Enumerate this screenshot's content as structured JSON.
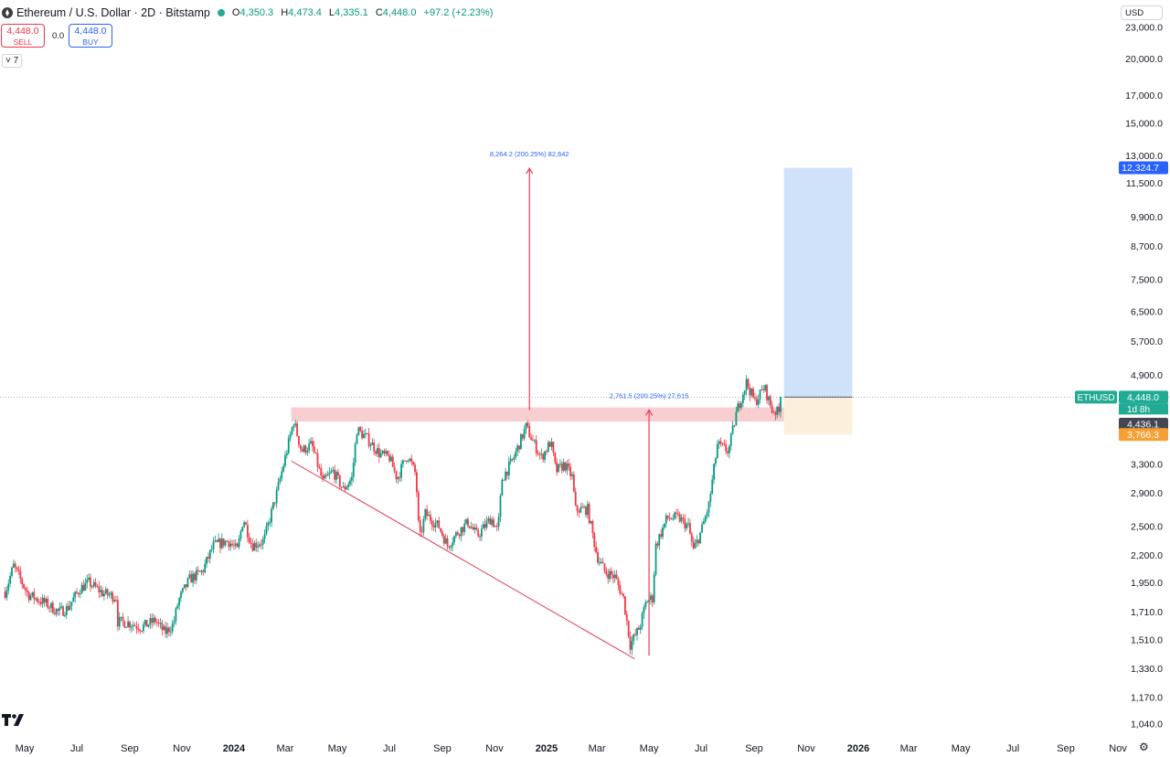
{
  "header": {
    "title": "Ethereum / U.S. Dollar · 2D · Bitstamp",
    "ohlc": [
      {
        "k": "O",
        "v": "4,350.3"
      },
      {
        "k": "H",
        "v": "4,473.4"
      },
      {
        "k": "L",
        "v": "4,335.1"
      },
      {
        "k": "C",
        "v": "4,448.0"
      }
    ],
    "change": "+97.2 (+2.23%)"
  },
  "trade": {
    "sell_price": "4,448.0",
    "sell_label": "SELL",
    "buy_price": "4,448.0",
    "buy_label": "BUY",
    "spread": "0.0"
  },
  "indicator_toggle": "7",
  "currency": "USD",
  "colors": {
    "up": "#089981",
    "down": "#f23645",
    "target_fill": "#cfe2fa",
    "stop_fill": "#fbf0dc",
    "resistance": "#f7c6c8",
    "arrow": "#e0405a",
    "measure_text": "#2962ff"
  },
  "chart_data": {
    "type": "candlestick",
    "symbol": "ETHUSD",
    "y_scale": "log",
    "ylim": [
      1000,
      24500
    ],
    "y_ticks": [
      "23,000.0",
      "20,000.0",
      "17,000.0",
      "15,000.0",
      "13,000.0",
      "11,500.0",
      "9,900.0",
      "8,700.0",
      "7,500.0",
      "6,500.0",
      "5,700.0",
      "4,900.0",
      "3,300.0",
      "2,900.0",
      "2,500.0",
      "2,200.0",
      "1,950.0",
      "1,710.0",
      "1,510.0",
      "1,330.0",
      "1,170.0",
      "1,040.0"
    ],
    "x_ticks": [
      "May",
      "Jul",
      "Sep",
      "Nov",
      "2024",
      "Mar",
      "May",
      "Jul",
      "Sep",
      "Nov",
      "2025",
      "Mar",
      "May",
      "Jul",
      "Sep",
      "Nov",
      "2026",
      "Mar",
      "May",
      "Jul",
      "Sep",
      "Nov"
    ],
    "x_tick_dates": [
      "2023-05-01",
      "2023-07-01",
      "2023-09-01",
      "2023-11-01",
      "2024-01-01",
      "2024-03-01",
      "2024-05-01",
      "2024-07-01",
      "2024-09-01",
      "2024-11-01",
      "2025-01-01",
      "2025-03-01",
      "2025-05-01",
      "2025-07-01",
      "2025-09-01",
      "2025-11-01",
      "2026-01-01",
      "2026-03-01",
      "2026-05-01",
      "2026-07-01",
      "2026-09-01",
      "2026-11-01"
    ],
    "bold_ticks": [
      "2024",
      "2025",
      "2026"
    ],
    "price_path": [
      [
        "2023-04-08",
        1870
      ],
      [
        "2023-04-18",
        2100
      ],
      [
        "2023-05-05",
        1850
      ],
      [
        "2023-05-25",
        1780
      ],
      [
        "2023-06-10",
        1710
      ],
      [
        "2023-06-20",
        1740
      ],
      [
        "2023-07-05",
        1900
      ],
      [
        "2023-07-15",
        1950
      ],
      [
        "2023-08-01",
        1860
      ],
      [
        "2023-08-16",
        1830
      ],
      [
        "2023-08-18",
        1640
      ],
      [
        "2023-09-01",
        1630
      ],
      [
        "2023-09-15",
        1600
      ],
      [
        "2023-10-01",
        1650
      ],
      [
        "2023-10-12",
        1560
      ],
      [
        "2023-10-22",
        1620
      ],
      [
        "2023-10-28",
        1800
      ],
      [
        "2023-11-10",
        1980
      ],
      [
        "2023-11-25",
        2050
      ],
      [
        "2023-12-08",
        2300
      ],
      [
        "2023-12-25",
        2350
      ],
      [
        "2024-01-05",
        2250
      ],
      [
        "2024-01-12",
        2600
      ],
      [
        "2024-01-22",
        2300
      ],
      [
        "2024-02-05",
        2350
      ],
      [
        "2024-02-20",
        2900
      ],
      [
        "2024-03-01",
        3400
      ],
      [
        "2024-03-11",
        4000
      ],
      [
        "2024-03-20",
        3500
      ],
      [
        "2024-04-01",
        3600
      ],
      [
        "2024-04-14",
        3050
      ],
      [
        "2024-04-26",
        3200
      ],
      [
        "2024-05-08",
        2950
      ],
      [
        "2024-05-18",
        3100
      ],
      [
        "2024-05-24",
        3850
      ],
      [
        "2024-06-05",
        3700
      ],
      [
        "2024-06-20",
        3450
      ],
      [
        "2024-07-01",
        3400
      ],
      [
        "2024-07-10",
        3100
      ],
      [
        "2024-07-22",
        3450
      ],
      [
        "2024-08-01",
        3150
      ],
      [
        "2024-08-05",
        2350
      ],
      [
        "2024-08-12",
        2650
      ],
      [
        "2024-08-28",
        2500
      ],
      [
        "2024-09-07",
        2300
      ],
      [
        "2024-09-20",
        2450
      ],
      [
        "2024-10-01",
        2550
      ],
      [
        "2024-10-12",
        2400
      ],
      [
        "2024-10-28",
        2600
      ],
      [
        "2024-11-05",
        2450
      ],
      [
        "2024-11-10",
        3100
      ],
      [
        "2024-11-22",
        3350
      ],
      [
        "2024-12-08",
        3900
      ],
      [
        "2024-12-18",
        3600
      ],
      [
        "2024-12-26",
        3400
      ],
      [
        "2025-01-06",
        3650
      ],
      [
        "2025-01-12",
        3200
      ],
      [
        "2025-01-22",
        3300
      ],
      [
        "2025-02-01",
        3100
      ],
      [
        "2025-02-03",
        2700
      ],
      [
        "2025-02-18",
        2700
      ],
      [
        "2025-03-01",
        2200
      ],
      [
        "2025-03-10",
        2050
      ],
      [
        "2025-03-22",
        2000
      ],
      [
        "2025-04-01",
        1820
      ],
      [
        "2025-04-09",
        1480
      ],
      [
        "2025-04-20",
        1600
      ],
      [
        "2025-04-28",
        1800
      ],
      [
        "2025-05-05",
        1820
      ],
      [
        "2025-05-09",
        2300
      ],
      [
        "2025-05-22",
        2600
      ],
      [
        "2025-06-05",
        2600
      ],
      [
        "2025-06-16",
        2500
      ],
      [
        "2025-06-22",
        2250
      ],
      [
        "2025-07-01",
        2450
      ],
      [
        "2025-07-10",
        2750
      ],
      [
        "2025-07-20",
        3600
      ],
      [
        "2025-08-02",
        3500
      ],
      [
        "2025-08-12",
        4200
      ],
      [
        "2025-08-23",
        4750
      ],
      [
        "2025-09-02",
        4350
      ],
      [
        "2025-09-13",
        4650
      ],
      [
        "2025-09-22",
        4200
      ],
      [
        "2025-09-30",
        4150
      ],
      [
        "2025-10-03",
        4448
      ]
    ],
    "series": [
      {
        "label": "ETHUSD",
        "last": "4,448.0",
        "countdown": "1d 8h"
      }
    ],
    "price_labels": [
      {
        "value": 4448.0,
        "text": "4,448.0",
        "color": "#22ab94"
      },
      {
        "value": 12324.7,
        "text": "12,324.7",
        "color": "#2962ff"
      },
      {
        "value": 4436.1,
        "text": "4,436.1",
        "color": "#434651"
      },
      {
        "value": 3766.3,
        "text": "3,766.3",
        "color": "#f6a033"
      }
    ],
    "annotations": [
      {
        "type": "zone",
        "name": "resistance",
        "x0": "2024-03-08",
        "x1": "2025-10-06",
        "y0": 3990,
        "y1": 4250
      },
      {
        "type": "trendline",
        "name": "falling-trend",
        "x0": "2024-03-08",
        "y0": 3350,
        "x1": "2025-04-14",
        "y1": 1390
      },
      {
        "type": "measure",
        "name": "measure-1",
        "date": "2024-12-12",
        "from": 4200,
        "to": 12300,
        "label": "8,264.2 (200.25%) 82,642"
      },
      {
        "type": "measure",
        "name": "measure-2",
        "date": "2025-05-01",
        "from": 1410,
        "to": 4200,
        "label": "2,761.5 (200.25%) 27,615"
      },
      {
        "type": "position",
        "name": "long-position",
        "x0": "2025-10-06",
        "x1": "2025-12-25",
        "entry": 4448.0,
        "target": 12324.7,
        "stop": 3766.3
      }
    ],
    "last_price": 4448.0
  }
}
